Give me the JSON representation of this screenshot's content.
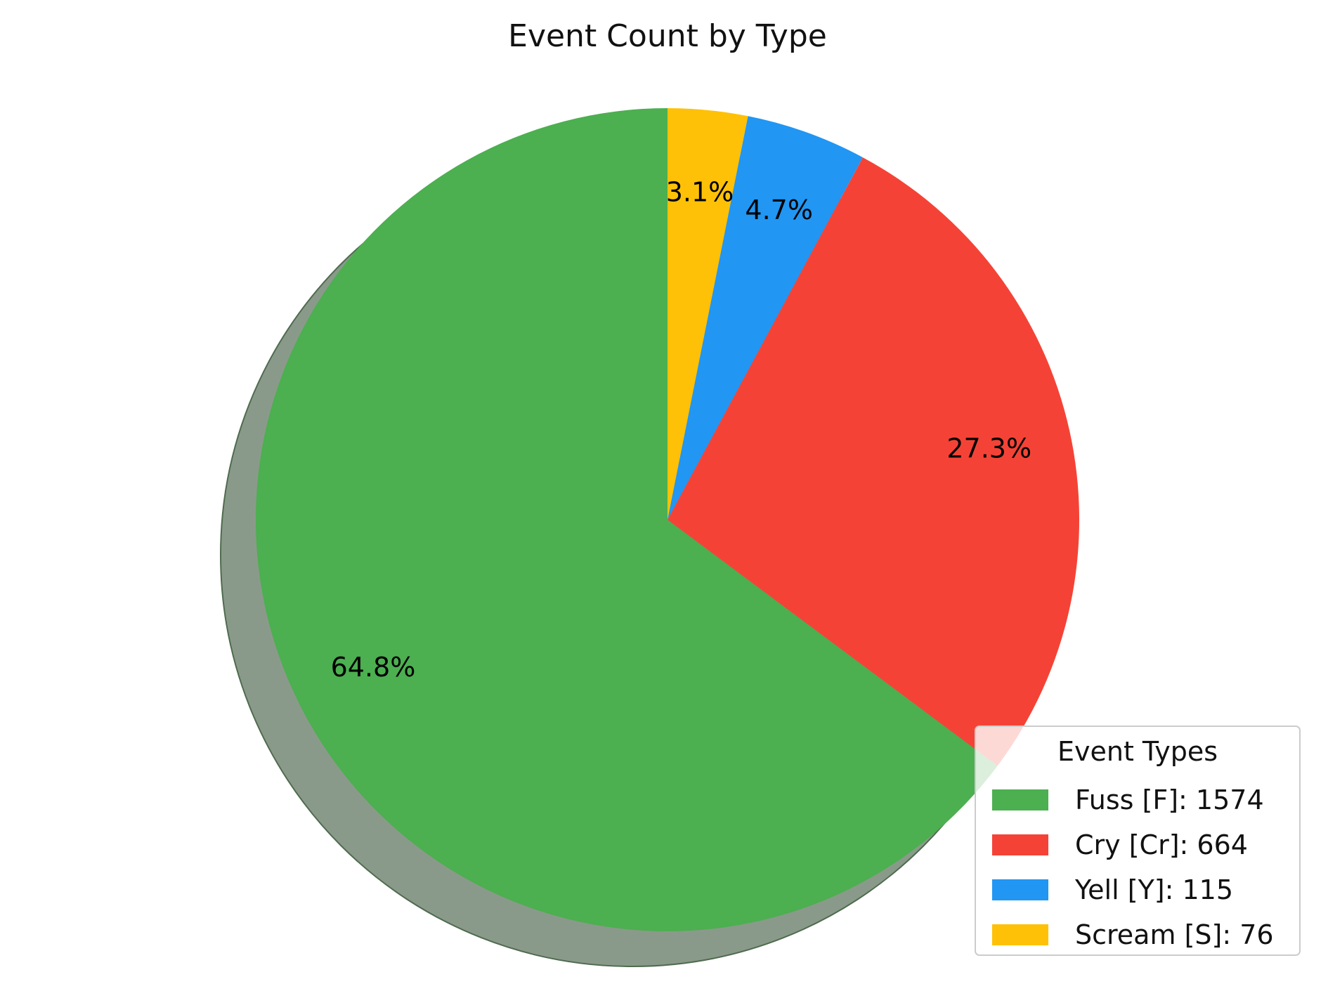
{
  "chart_data": {
    "type": "pie",
    "title": "Event Count by Type",
    "categories": [
      "Fuss [F]",
      "Cry [Cr]",
      "Yell [Y]",
      "Scream [S]"
    ],
    "values": [
      1574,
      664,
      115,
      76
    ],
    "pct_labels": [
      "64.8%",
      "27.3%",
      "4.7%",
      "3.1%"
    ],
    "colors": [
      "#4caf50",
      "#f44336",
      "#2196f3",
      "#ffc107"
    ],
    "shadow": true,
    "start_angle": "top, counter-clockwise",
    "legend": {
      "title": "Event Types",
      "position": "lower-right",
      "entries": [
        "Fuss [F]: 1574",
        "Cry [Cr]: 664",
        "Yell [Y]: 115",
        "Scream [S]: 76"
      ]
    }
  }
}
